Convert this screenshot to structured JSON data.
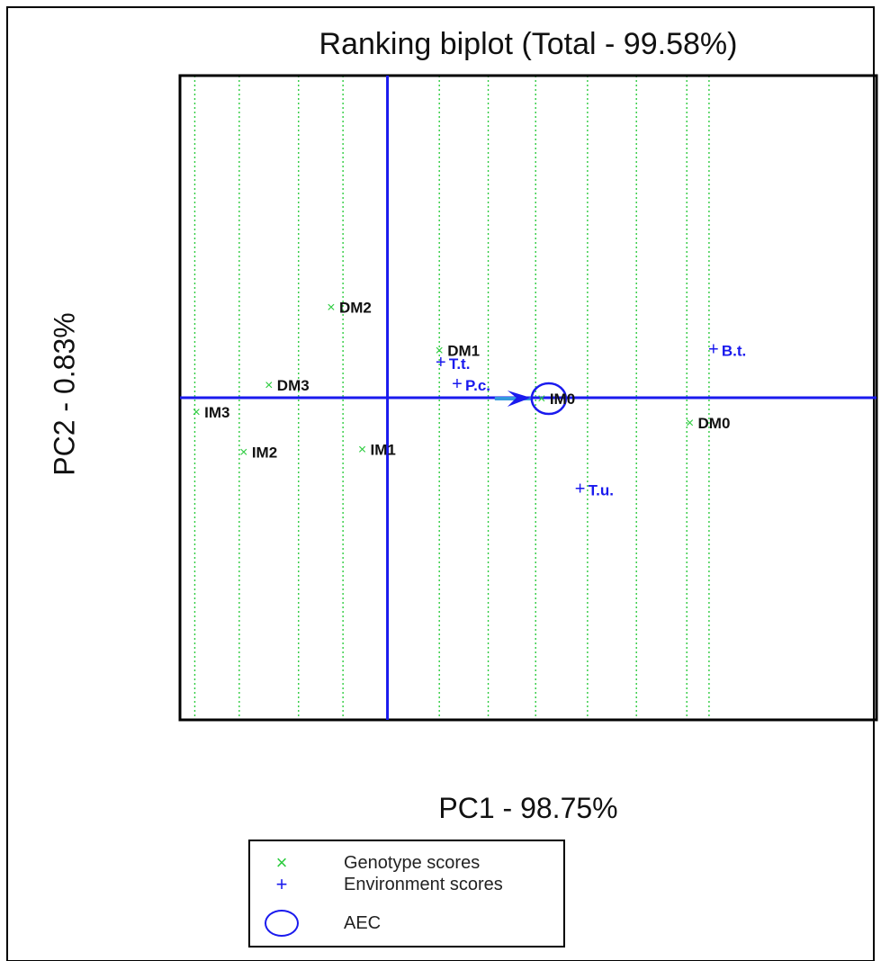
{
  "chart_data": {
    "type": "scatter",
    "title": "Ranking biplot (Total - 99.58%)",
    "xlabel": "PC1 - 98.75%",
    "ylabel": "PC2 - 0.83%",
    "xlim": [
      -1.4,
      3.3
    ],
    "ylim": [
      -1.2,
      1.2
    ],
    "grid": "vertical dotted lines perpendicular to AEC axis",
    "series": [
      {
        "name": "Genotype scores",
        "marker": "x",
        "color": "#2ecc40",
        "points": [
          {
            "label": "DM2",
            "x": -0.38,
            "y": 0.34
          },
          {
            "label": "DM1",
            "x": 0.35,
            "y": 0.18
          },
          {
            "label": "DM3",
            "x": -0.8,
            "y": 0.05
          },
          {
            "label": "IM3",
            "x": -1.29,
            "y": -0.05
          },
          {
            "label": "IM2",
            "x": -0.97,
            "y": -0.2
          },
          {
            "label": "IM1",
            "x": -0.17,
            "y": -0.19
          },
          {
            "label": "IM0",
            "x": 1.04,
            "y": 0.0
          },
          {
            "label": "DM0",
            "x": 2.04,
            "y": -0.09
          }
        ]
      },
      {
        "name": "Environment scores",
        "marker": "+",
        "color": "#1a1aee",
        "points": [
          {
            "label": "T.t.",
            "x": 0.36,
            "y": 0.13
          },
          {
            "label": "P.c.",
            "x": 0.47,
            "y": 0.05
          },
          {
            "label": "B.t.",
            "x": 2.2,
            "y": 0.18
          },
          {
            "label": "T.u.",
            "x": 1.3,
            "y": -0.34
          }
        ]
      }
    ],
    "aec": {
      "name": "AEC",
      "x": 1.04,
      "y": 0.0
    },
    "grid_x": [
      -1.3,
      -1.0,
      -0.6,
      -0.3,
      0.35,
      0.68,
      1.0,
      1.35,
      1.68,
      2.02,
      2.17
    ]
  },
  "legend": {
    "items": [
      {
        "symbol": "×",
        "label": "Genotype scores",
        "color": "#2ecc40"
      },
      {
        "symbol": "+",
        "label": "Environment scores",
        "color": "#1a1aee"
      },
      {
        "symbol": "ellipse",
        "label": "AEC",
        "color": "#1a1aee"
      }
    ]
  }
}
